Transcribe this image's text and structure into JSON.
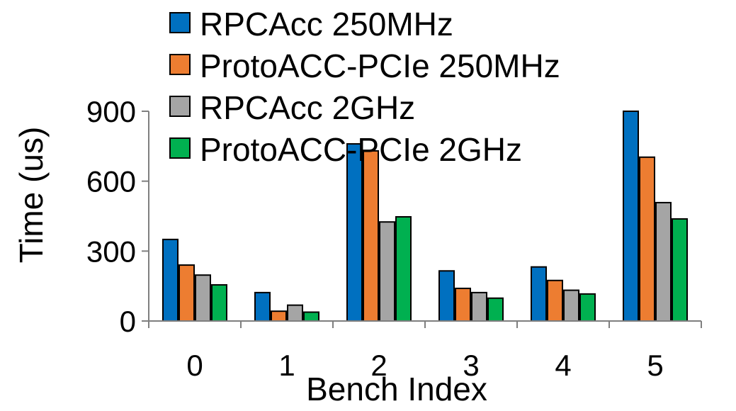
{
  "chart_data": {
    "type": "bar",
    "title": "",
    "xlabel": "Bench Index",
    "ylabel": "Time (us)",
    "categories": [
      "0",
      "1",
      "2",
      "3",
      "4",
      "5"
    ],
    "ylim": [
      0,
      900
    ],
    "yticks": [
      0,
      300,
      600,
      900
    ],
    "yticklabels": [
      "0",
      "300",
      "600",
      "900"
    ],
    "grid": false,
    "legend_position": "top",
    "series": [
      {
        "name": "RPCAcc 250MHz",
        "color": "#0070C0",
        "values": [
          350,
          122,
          760,
          215,
          232,
          900
        ]
      },
      {
        "name": "ProtoACC-PCIe 250MHz",
        "color": "#ED7D31",
        "values": [
          240,
          42,
          730,
          140,
          174,
          703
        ]
      },
      {
        "name": "RPCAcc 2GHz",
        "color": "#A5A5A5",
        "values": [
          197,
          68,
          425,
          122,
          132,
          508
        ]
      },
      {
        "name": "ProtoACC-PCIe 2GHz",
        "color": "#00B050",
        "values": [
          155,
          38,
          447,
          98,
          116,
          438
        ]
      }
    ]
  }
}
